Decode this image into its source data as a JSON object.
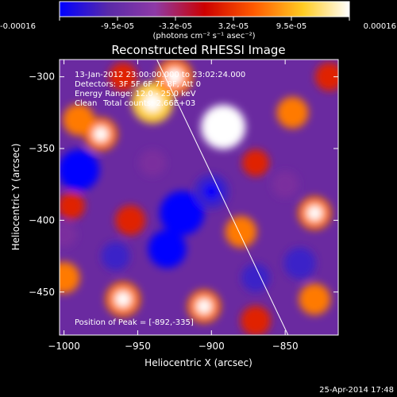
{
  "colorbar": {
    "tick_labels": [
      "-0.00016",
      "-9.5e-05",
      "-3.2e-05",
      "3.2e-05",
      "9.5e-05",
      "0.00016"
    ],
    "range": [
      -0.00016,
      0.00016
    ],
    "unit_label": "(photons cm⁻² s⁻¹ asec⁻²)",
    "colors": [
      "#0000ff",
      "#6a2aa0",
      "#8e3aa6",
      "#cc0000",
      "#ff6a00",
      "#ffcc22",
      "#ffffff"
    ]
  },
  "title": "Reconstructed RHESSI Image",
  "annotations": {
    "time": "13-Jan-2012 23:00:00.000 to 23:02:24.000",
    "detectors": "Detectors: 3F 5F 6F 7F 8F, Att 0",
    "energy": "Energy Range: 12.0 - 25.0 keV",
    "method": "Clean",
    "counts": "Total counts: 2.66E+03",
    "peak": "Position of Peak = [-892,-335]"
  },
  "footer_date": "25-Apr-2014 17:48",
  "chart_data": {
    "type": "heatmap",
    "title": "Reconstructed RHESSI Image",
    "xlabel": "Heliocentric X (arcsec)",
    "ylabel": "Heliocentric Y (arcsec)",
    "xlim": [
      -1003,
      -814
    ],
    "ylim": [
      -480,
      -288
    ],
    "x_ticks": [
      -1000,
      -950,
      -900,
      -850
    ],
    "y_ticks": [
      -300,
      -350,
      -400,
      -450
    ],
    "x_tick_labels": [
      "−1000",
      "−950",
      "−900",
      "−850"
    ],
    "y_tick_labels": [
      "−300",
      "−350",
      "−400",
      "−450"
    ],
    "peak_position": [
      -892,
      -335
    ],
    "limb_line": {
      "x": [
        -937,
        -848
      ],
      "y": [
        -288,
        -480
      ]
    },
    "value_range": [
      -0.00016,
      0.00016
    ],
    "features": [
      {
        "x": -892,
        "y": -335,
        "value": 0.00016
      },
      {
        "x": -940,
        "y": -318,
        "value": 0.00014
      },
      {
        "x": -925,
        "y": -300,
        "value": 0.00011
      },
      {
        "x": -975,
        "y": -340,
        "value": 9e-05
      },
      {
        "x": -990,
        "y": -330,
        "value": 8e-05
      },
      {
        "x": -845,
        "y": -325,
        "value": 8e-05
      },
      {
        "x": -830,
        "y": -395,
        "value": 9e-05
      },
      {
        "x": -880,
        "y": -408,
        "value": 8e-05
      },
      {
        "x": -955,
        "y": -400,
        "value": 7e-05
      },
      {
        "x": -960,
        "y": -455,
        "value": 0.0001
      },
      {
        "x": -1000,
        "y": -440,
        "value": 8e-05
      },
      {
        "x": -905,
        "y": -460,
        "value": 9e-05
      },
      {
        "x": -870,
        "y": -470,
        "value": 7e-05
      },
      {
        "x": -830,
        "y": -455,
        "value": 8e-05
      },
      {
        "x": -960,
        "y": -300,
        "value": 6e-05
      },
      {
        "x": -995,
        "y": -390,
        "value": 5e-05
      },
      {
        "x": -870,
        "y": -360,
        "value": 5e-05
      },
      {
        "x": -820,
        "y": -300,
        "value": 6e-05
      },
      {
        "x": -920,
        "y": -395,
        "value": -0.00016
      },
      {
        "x": -990,
        "y": -365,
        "value": -0.00014
      },
      {
        "x": -930,
        "y": -420,
        "value": -0.00012
      },
      {
        "x": -900,
        "y": -380,
        "value": -0.0001
      },
      {
        "x": -840,
        "y": -430,
        "value": -8e-05
      },
      {
        "x": -870,
        "y": -440,
        "value": -6e-05
      },
      {
        "x": -965,
        "y": -425,
        "value": -6e-05
      },
      {
        "x": -940,
        "y": -360,
        "value": -5e-05
      },
      {
        "x": -850,
        "y": -375,
        "value": -5e-05
      },
      {
        "x": -1000,
        "y": -410,
        "value": -4e-05
      }
    ]
  }
}
